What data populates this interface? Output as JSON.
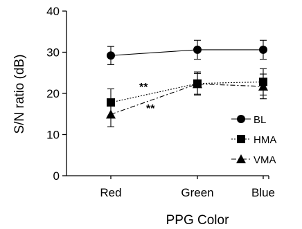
{
  "chart_data": {
    "type": "line",
    "xlabel": "PPG Color",
    "ylabel": "S/N ratio (dB)",
    "ylim": [
      0,
      40
    ],
    "yticks": [
      0,
      10,
      20,
      30,
      40
    ],
    "categories": [
      "Red",
      "Green",
      "Blue"
    ],
    "grid": false,
    "legend_position": "right",
    "series": [
      {
        "name": "BL",
        "marker": "circle",
        "line": "solid",
        "values": [
          29.2,
          30.6,
          30.6
        ],
        "errors": [
          2.2,
          2.3,
          2.3
        ]
      },
      {
        "name": "HMA",
        "marker": "square",
        "line": "dotted",
        "values": [
          17.8,
          22.4,
          22.8
        ],
        "errors": [
          3.3,
          2.8,
          3.2
        ]
      },
      {
        "name": "VMA",
        "marker": "triangle",
        "line": "dashdot",
        "values": [
          14.9,
          22.3,
          21.7
        ],
        "errors": [
          3.0,
          2.5,
          3.0
        ]
      }
    ],
    "annotations": [
      "**",
      "**"
    ],
    "colors": {
      "line": "#000000",
      "background": "#ffffff"
    }
  }
}
